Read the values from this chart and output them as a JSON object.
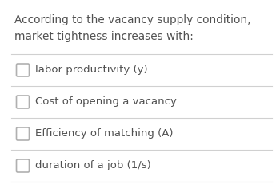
{
  "header_text": "According to the vacancy supply condition,\nmarket tightness increases with:",
  "options": [
    "labor productivity (y)",
    "Cost of opening a vacancy",
    "Efficiency of matching (A)",
    "duration of a job (1/s)"
  ],
  "bg_color": "#ffffff",
  "text_color": "#505050",
  "header_fontsize": 9.8,
  "option_fontsize": 9.5,
  "checkbox_color": "#b0b0b0",
  "line_color": "#d0d0d0"
}
